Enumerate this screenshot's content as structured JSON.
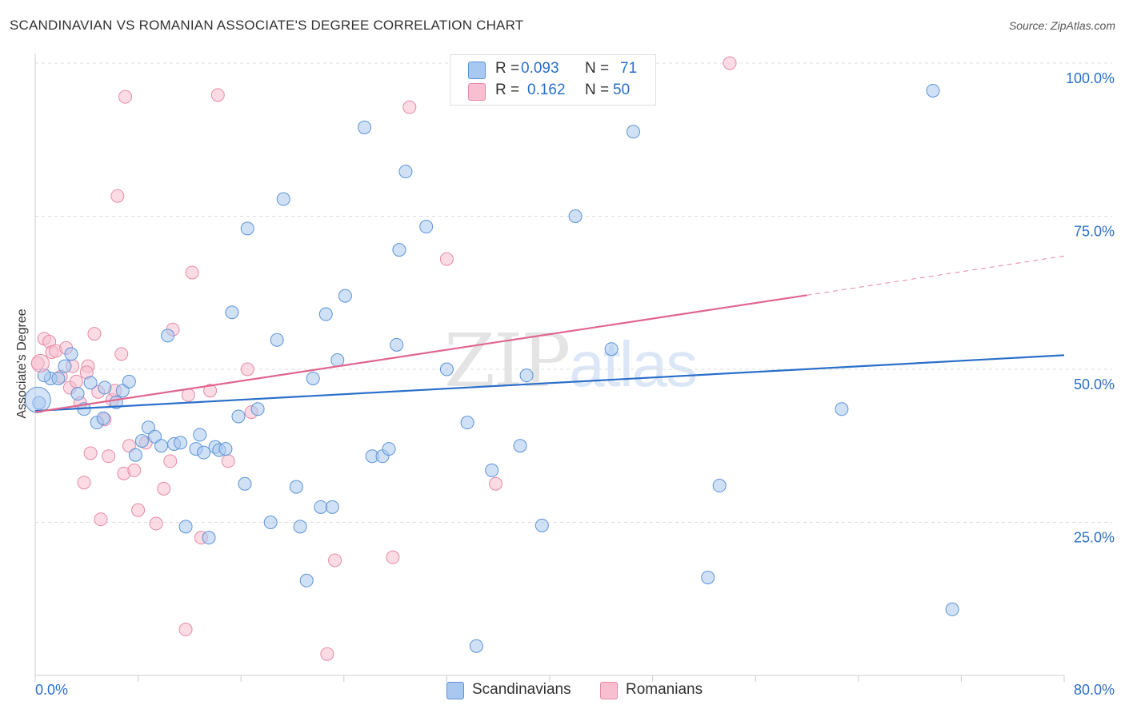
{
  "header": {
    "title": "SCANDINAVIAN VS ROMANIAN ASSOCIATE'S DEGREE CORRELATION CHART",
    "source": "Source: ZipAtlas.com"
  },
  "legend": {
    "rows": [
      {
        "r_label": "R =",
        "r_value": "0.093",
        "n_label": "N =",
        "n_value": "71"
      },
      {
        "r_label": "R =",
        "r_value": "0.162",
        "n_label": "N =",
        "n_value": "50"
      }
    ],
    "bottom": [
      "Scandinavians",
      "Romanians"
    ]
  },
  "watermark": {
    "zip": "ZIP",
    "atlas": "atlas"
  },
  "colors": {
    "scandinavian_fill": "#a9c8ef",
    "scandinavian_stroke": "#5b93d6",
    "scandinavian_line": "#2a6fc9",
    "romanian_fill": "#f7bfd0",
    "romanian_stroke": "#e58aa6",
    "romanian_line": "#e0668e",
    "axis_text": "#2a6fc9",
    "grid": "#dddddd"
  },
  "chart_data": {
    "type": "scatter",
    "title": "SCANDINAVIAN VS ROMANIAN ASSOCIATE'S DEGREE CORRELATION CHART",
    "xlabel": "",
    "ylabel": "Associate's Degree",
    "xlim": [
      0,
      80
    ],
    "ylim": [
      0,
      100
    ],
    "x_tick_labels": [
      "0.0%",
      "80.0%"
    ],
    "y_tick_labels": [
      "25.0%",
      "50.0%",
      "75.0%",
      "100.0%"
    ],
    "y_ticks": [
      25,
      50,
      75,
      100
    ],
    "grid": true,
    "series": [
      {
        "name": "Scandinavians",
        "r": 0.093,
        "n": 71,
        "trend": {
          "x0": 0,
          "y0": 43.2,
          "x1": 80,
          "y1": 52.3
        },
        "points": [
          [
            0.3,
            44.5
          ],
          [
            1.2,
            48.5
          ],
          [
            1.8,
            48.5
          ],
          [
            2.3,
            50.5
          ],
          [
            2.8,
            52.5
          ],
          [
            3.3,
            46.0
          ],
          [
            3.8,
            43.5
          ],
          [
            4.3,
            47.8
          ],
          [
            4.8,
            41.3
          ],
          [
            5.3,
            42.0
          ],
          [
            5.4,
            47.0
          ],
          [
            6.3,
            44.6
          ],
          [
            6.8,
            46.5
          ],
          [
            7.3,
            48.0
          ],
          [
            7.8,
            36.0
          ],
          [
            8.3,
            38.3
          ],
          [
            8.8,
            40.5
          ],
          [
            9.3,
            39.0
          ],
          [
            9.8,
            37.5
          ],
          [
            10.3,
            55.5
          ],
          [
            10.8,
            37.8
          ],
          [
            11.3,
            38.0
          ],
          [
            11.7,
            24.3
          ],
          [
            12.5,
            37.0
          ],
          [
            12.8,
            39.3
          ],
          [
            13.5,
            22.5
          ],
          [
            14.0,
            37.3
          ],
          [
            14.3,
            36.8
          ],
          [
            14.8,
            37.0
          ],
          [
            15.3,
            59.3
          ],
          [
            15.8,
            42.3
          ],
          [
            16.3,
            31.3
          ],
          [
            16.5,
            73.0
          ],
          [
            17.3,
            43.5
          ],
          [
            18.3,
            25.0
          ],
          [
            18.8,
            54.8
          ],
          [
            19.3,
            77.8
          ],
          [
            20.3,
            30.8
          ],
          [
            20.6,
            24.3
          ],
          [
            21.1,
            15.5
          ],
          [
            21.6,
            48.5
          ],
          [
            22.2,
            27.5
          ],
          [
            22.6,
            59.0
          ],
          [
            23.1,
            27.5
          ],
          [
            23.5,
            51.5
          ],
          [
            24.1,
            62.0
          ],
          [
            25.6,
            89.5
          ],
          [
            26.2,
            35.8
          ],
          [
            27.0,
            35.8
          ],
          [
            27.5,
            37.0
          ],
          [
            28.1,
            54.0
          ],
          [
            28.3,
            69.5
          ],
          [
            28.8,
            82.3
          ],
          [
            30.4,
            73.3
          ],
          [
            32.0,
            50.0
          ],
          [
            33.6,
            41.3
          ],
          [
            34.3,
            4.8
          ],
          [
            35.5,
            33.5
          ],
          [
            37.7,
            37.5
          ],
          [
            38.2,
            49.0
          ],
          [
            39.4,
            24.5
          ],
          [
            42.0,
            75.0
          ],
          [
            44.8,
            53.3
          ],
          [
            46.5,
            88.8
          ],
          [
            52.3,
            16.0
          ],
          [
            53.2,
            31.0
          ],
          [
            62.7,
            43.5
          ],
          [
            69.8,
            95.5
          ],
          [
            71.3,
            10.8
          ],
          [
            0.7,
            49.0
          ],
          [
            13.1,
            36.4
          ]
        ]
      },
      {
        "name": "Romanians",
        "r": 0.162,
        "n": 50,
        "trend": {
          "x0": 0,
          "y0": 43.0,
          "x1": 60,
          "y1": 62.1,
          "dashed_to": {
            "x": 80,
            "y": 68.5
          }
        },
        "points": [
          [
            0.2,
            51.0
          ],
          [
            0.7,
            55.0
          ],
          [
            1.1,
            54.5
          ],
          [
            1.3,
            52.8
          ],
          [
            1.6,
            53.0
          ],
          [
            2.0,
            48.8
          ],
          [
            2.4,
            53.5
          ],
          [
            2.7,
            47.0
          ],
          [
            2.9,
            50.5
          ],
          [
            3.2,
            48.0
          ],
          [
            3.5,
            44.5
          ],
          [
            3.8,
            31.5
          ],
          [
            4.1,
            50.5
          ],
          [
            4.3,
            36.3
          ],
          [
            4.6,
            55.8
          ],
          [
            4.9,
            46.3
          ],
          [
            5.1,
            25.5
          ],
          [
            5.4,
            41.8
          ],
          [
            5.7,
            35.8
          ],
          [
            6.0,
            45.0
          ],
          [
            6.2,
            46.5
          ],
          [
            6.4,
            78.3
          ],
          [
            6.7,
            52.5
          ],
          [
            6.9,
            33.0
          ],
          [
            7.0,
            94.5
          ],
          [
            7.3,
            37.5
          ],
          [
            7.7,
            33.5
          ],
          [
            8.0,
            27.0
          ],
          [
            9.4,
            24.8
          ],
          [
            10.0,
            30.5
          ],
          [
            10.5,
            35.0
          ],
          [
            10.7,
            56.5
          ],
          [
            11.7,
            7.5
          ],
          [
            11.9,
            45.8
          ],
          [
            12.2,
            65.8
          ],
          [
            12.9,
            22.5
          ],
          [
            13.6,
            46.5
          ],
          [
            14.2,
            94.8
          ],
          [
            15.0,
            35.0
          ],
          [
            16.5,
            50.0
          ],
          [
            16.8,
            43.0
          ],
          [
            22.7,
            3.5
          ],
          [
            23.3,
            18.8
          ],
          [
            27.8,
            19.3
          ],
          [
            29.1,
            92.8
          ],
          [
            32.0,
            68.0
          ],
          [
            35.8,
            31.3
          ],
          [
            54.0,
            100.0
          ],
          [
            8.6,
            38.0
          ],
          [
            4.0,
            49.5
          ]
        ]
      }
    ]
  }
}
